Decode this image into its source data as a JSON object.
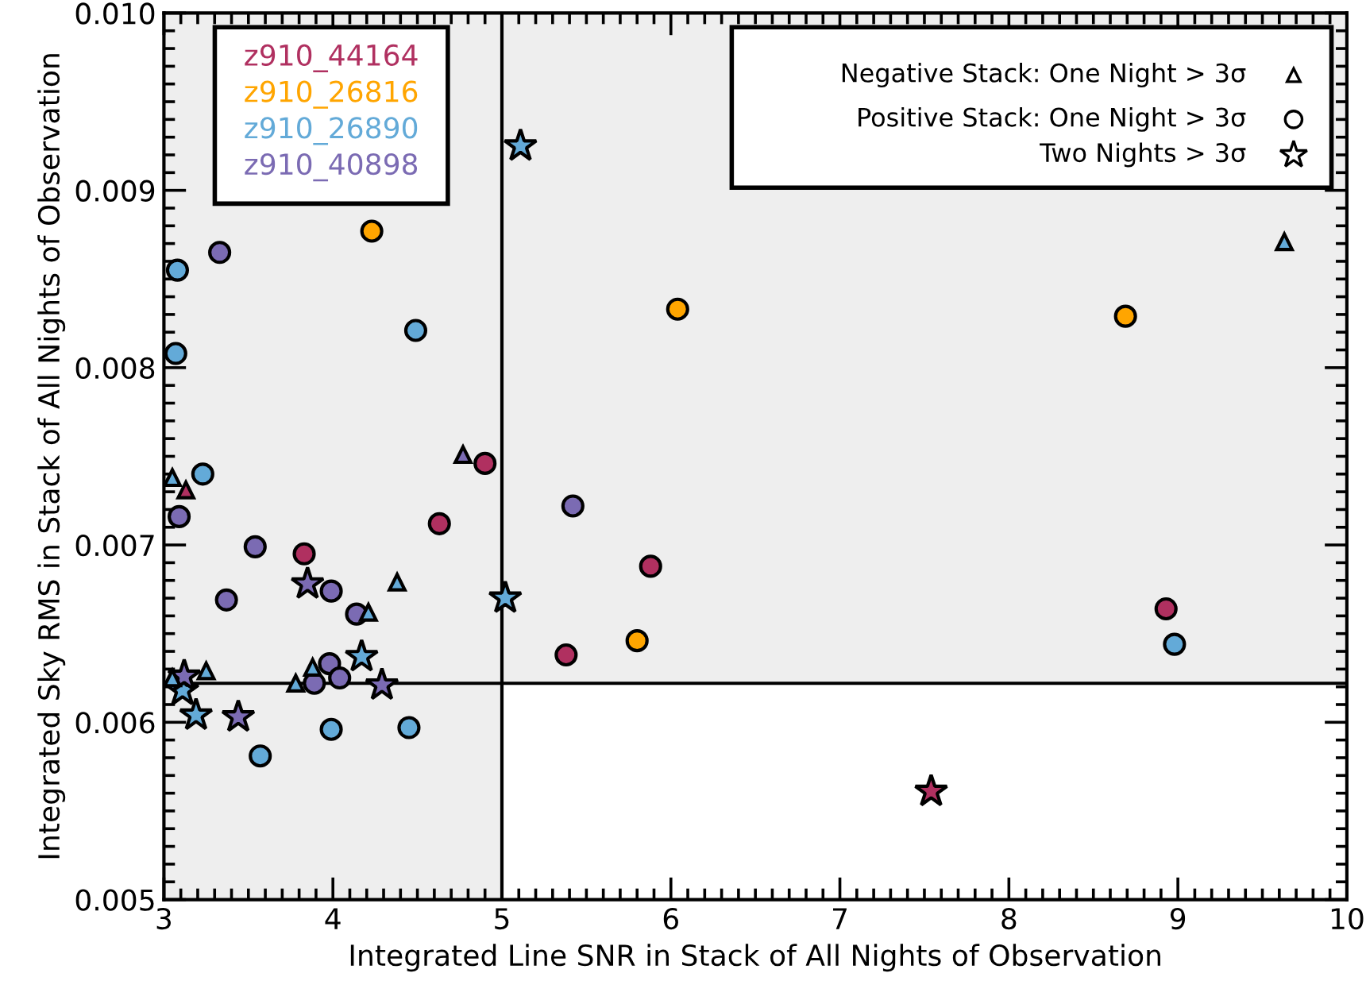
{
  "chart_data": {
    "type": "scatter",
    "xlabel": "Integrated Line SNR in Stack of All Nights of Observation",
    "ylabel": "Integrated Sky RMS in Stack of All Nights of Observation",
    "xlim": [
      3,
      10
    ],
    "ylim": [
      0.005,
      0.01
    ],
    "xticks": [
      3,
      4,
      5,
      6,
      7,
      8,
      9,
      10
    ],
    "yticks": [
      0.005,
      0.006,
      0.007,
      0.008,
      0.009,
      {
        "value": 0.01,
        "label": "0.010"
      }
    ],
    "grid": false,
    "legend": "top left",
    "bands": [
      {
        "axis": "x",
        "from": 3,
        "to": 5,
        "color": "#eeeeee"
      },
      {
        "axis": "y",
        "from": 0.00622,
        "to": 0.01,
        "color": "#eeeeee"
      }
    ],
    "ref_lines": [
      {
        "axis": "x",
        "value": 5,
        "color": "#000000"
      },
      {
        "axis": "y",
        "value": 0.00622,
        "color": "#000000"
      }
    ],
    "annotations": [
      "Negative Stack: One Night > 3σ",
      "Positive Stack: One Night > 3σ",
      "Two Nights > 3σ"
    ],
    "series": [
      {
        "name": "z910_44164",
        "color": "#b03060",
        "marker": "triangle",
        "x": [
          3.13
        ],
        "values": [
          0.00731
        ]
      },
      {
        "color": "#b03060",
        "marker": "circle",
        "x": [
          4.9,
          4.63,
          3.83,
          5.88,
          5.38,
          8.93
        ],
        "values": [
          0.00746,
          0.00712,
          0.00695,
          0.00688,
          0.00638,
          0.00664
        ]
      },
      {
        "color": "#b03060",
        "marker": "star",
        "x": [
          7.54
        ],
        "values": [
          0.00561
        ]
      },
      {
        "name": "z910_26816",
        "color": "#ffa500",
        "marker": "circle",
        "x": [
          4.23,
          6.04,
          5.8,
          8.69
        ],
        "values": [
          0.00877,
          0.00833,
          0.00646,
          0.00829
        ]
      },
      {
        "name": "z910_26890",
        "color": "#63aad8",
        "marker": "circle",
        "x": [
          3.08,
          3.07,
          4.49,
          3.23,
          3.57,
          3.99,
          4.45,
          8.98
        ],
        "values": [
          0.00855,
          0.00808,
          0.00821,
          0.0074,
          0.00581,
          0.00596,
          0.00597,
          0.00644
        ]
      },
      {
        "color": "#63aad8",
        "marker": "triangle",
        "x": [
          3.05,
          3.25,
          3.78,
          4.38,
          4.21,
          3.05,
          9.63,
          3.88
        ],
        "values": [
          0.00738,
          0.00629,
          0.00622,
          0.00679,
          0.00662,
          0.00625,
          0.00871,
          0.00631
        ]
      },
      {
        "color": "#63aad8",
        "marker": "star",
        "x": [
          5.11,
          5.02,
          4.17,
          3.19,
          3.11
        ],
        "values": [
          0.00925,
          0.0067,
          0.00637,
          0.00604,
          0.00618
        ]
      },
      {
        "name": "z910_40898",
        "color": "#7b6bb3",
        "marker": "circle",
        "x": [
          3.33,
          3.09,
          3.54,
          3.37,
          3.99,
          4.14,
          3.98,
          3.89,
          4.04,
          5.42
        ],
        "values": [
          0.00865,
          0.00716,
          0.00699,
          0.00669,
          0.00674,
          0.00661,
          0.00633,
          0.00622,
          0.00625,
          0.00722
        ]
      },
      {
        "color": "#7b6bb3",
        "marker": "star",
        "x": [
          3.85,
          4.29,
          3.44,
          3.12
        ],
        "values": [
          0.00678,
          0.00621,
          0.00603,
          0.00626
        ]
      },
      {
        "color": "#7b6bb3",
        "marker": "triangle",
        "x": [
          4.77
        ],
        "values": [
          0.00751
        ]
      }
    ]
  }
}
